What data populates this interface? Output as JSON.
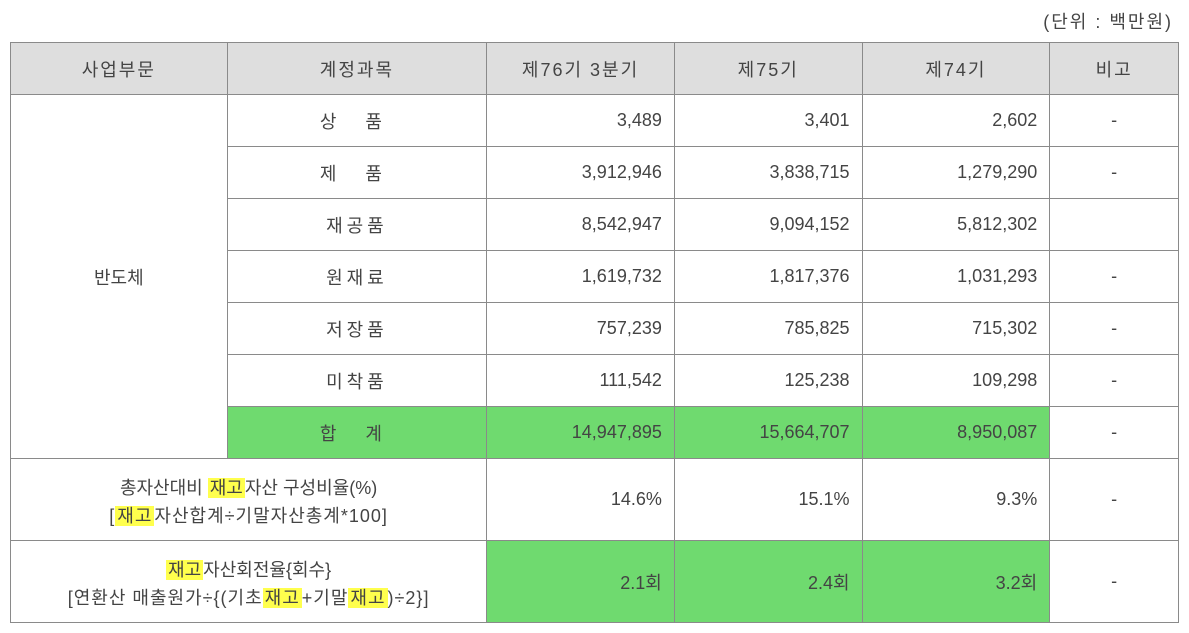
{
  "unit_label": "(단위 : 백만원)",
  "columns": {
    "sector": "사업부문",
    "account": "계정과목",
    "p76": "제76기 3분기",
    "p75": "제75기",
    "p74": "제74기",
    "note": "비고"
  },
  "sector_name": "반도체",
  "rows": [
    {
      "account": "상 품",
      "acct_class": "account",
      "p76": "3,489",
      "p75": "3,401",
      "p74": "2,602",
      "note": "-",
      "highlight": false
    },
    {
      "account": "제 품",
      "acct_class": "account",
      "p76": "3,912,946",
      "p75": "3,838,715",
      "p74": "1,279,290",
      "note": "-",
      "highlight": false
    },
    {
      "account": "재공품",
      "acct_class": "account-tight",
      "p76": "8,542,947",
      "p75": "9,094,152",
      "p74": "5,812,302",
      "note": "",
      "highlight": false
    },
    {
      "account": "원재료",
      "acct_class": "account-tight",
      "p76": "1,619,732",
      "p75": "1,817,376",
      "p74": "1,031,293",
      "note": "-",
      "highlight": false
    },
    {
      "account": "저장품",
      "acct_class": "account-tight",
      "p76": "757,239",
      "p75": "785,825",
      "p74": "715,302",
      "note": "-",
      "highlight": false
    },
    {
      "account": "미착품",
      "acct_class": "account-tight",
      "p76": "111,542",
      "p75": "125,238",
      "p74": "109,298",
      "note": "-",
      "highlight": false
    },
    {
      "account": "합 계",
      "acct_class": "account",
      "p76": "14,947,895",
      "p75": "15,664,707",
      "p74": "8,950,087",
      "note": "-",
      "highlight": true
    }
  ],
  "footer1": {
    "title_pre": "총자산대비 ",
    "title_hl": "재고",
    "title_post": "자산 구성비율(%)",
    "sub_pre": "[",
    "sub_hl": "재고",
    "sub_post": "자산합계÷기말자산총계*100]",
    "p76": "14.6%",
    "p75": "15.1%",
    "p74": "9.3%",
    "note": "-"
  },
  "footer2": {
    "title_hl": "재고",
    "title_post": "자산회전율{회수}",
    "sub_pre": "[연환산 매출원가÷{(기초",
    "sub_hl1": "재고",
    "sub_mid": "+기말",
    "sub_hl2": "재고",
    "sub_post": ")÷2}]",
    "p76": "2.1회",
    "p75": "2.4회",
    "p74": "3.2회",
    "note": "-",
    "highlight": true
  },
  "colors": {
    "border": "#8a8a8a",
    "header_bg": "#dedede",
    "green_highlight": "#6fda6f",
    "yellow_highlight": "#ffff4d",
    "text": "#444444",
    "background": "#ffffff"
  }
}
